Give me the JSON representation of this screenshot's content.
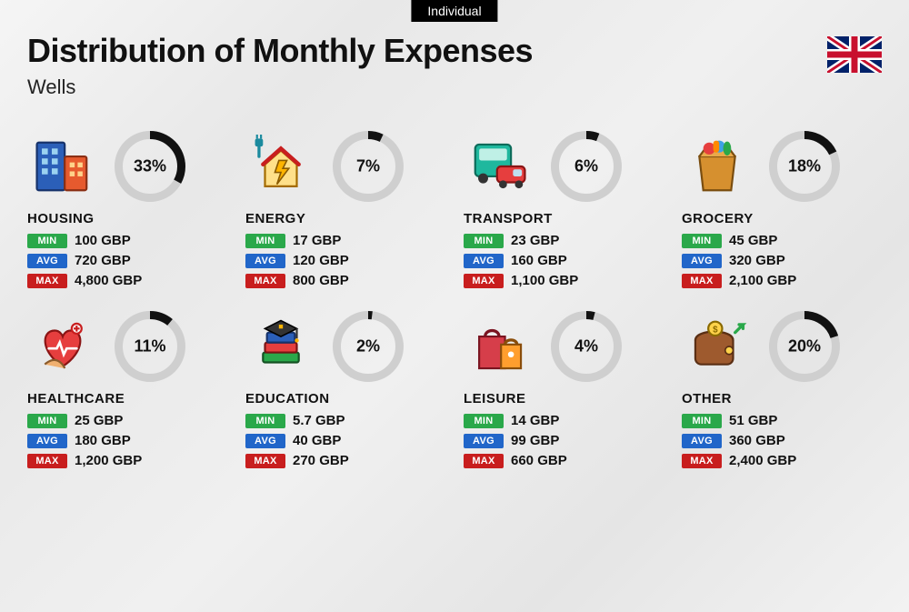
{
  "badge": "Individual",
  "title": "Distribution of Monthly Expenses",
  "subtitle": "Wells",
  "currency": "GBP",
  "labels": {
    "min": "MIN",
    "avg": "AVG",
    "max": "MAX"
  },
  "colors": {
    "min_badge": "#2aa84a",
    "avg_badge": "#2166c9",
    "max_badge": "#c81e1e",
    "donut_fg": "#111111",
    "donut_bg": "#cfcfcf",
    "text": "#111111",
    "background": "#f0f0f0"
  },
  "donut": {
    "size": 78,
    "stroke": 9
  },
  "categories": [
    {
      "key": "housing",
      "name": "HOUSING",
      "percent": 33,
      "min": "100",
      "avg": "720",
      "max": "4,800"
    },
    {
      "key": "energy",
      "name": "ENERGY",
      "percent": 7,
      "min": "17",
      "avg": "120",
      "max": "800"
    },
    {
      "key": "transport",
      "name": "TRANSPORT",
      "percent": 6,
      "min": "23",
      "avg": "160",
      "max": "1,100"
    },
    {
      "key": "grocery",
      "name": "GROCERY",
      "percent": 18,
      "min": "45",
      "avg": "320",
      "max": "2,100"
    },
    {
      "key": "healthcare",
      "name": "HEALTHCARE",
      "percent": 11,
      "min": "25",
      "avg": "180",
      "max": "1,200"
    },
    {
      "key": "education",
      "name": "EDUCATION",
      "percent": 2,
      "min": "5.7",
      "avg": "40",
      "max": "270"
    },
    {
      "key": "leisure",
      "name": "LEISURE",
      "percent": 4,
      "min": "14",
      "avg": "99",
      "max": "660"
    },
    {
      "key": "other",
      "name": "OTHER",
      "percent": 20,
      "min": "51",
      "avg": "360",
      "max": "2,400"
    }
  ]
}
